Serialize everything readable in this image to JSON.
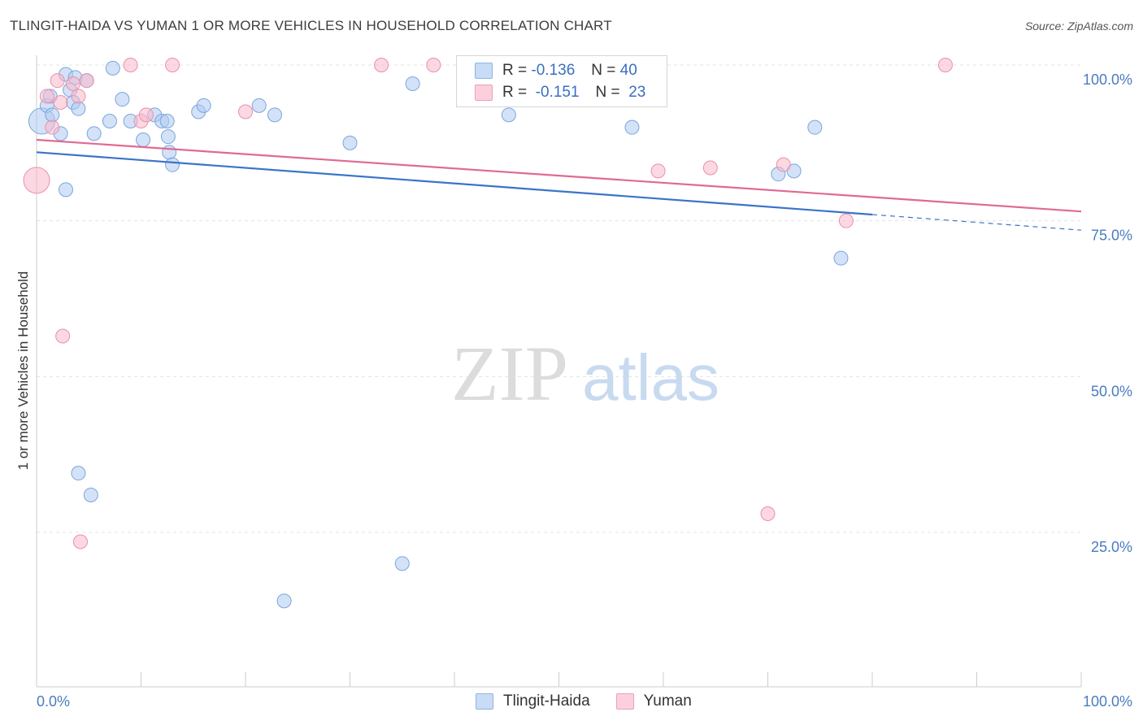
{
  "header": {
    "title": "TLINGIT-HAIDA VS YUMAN 1 OR MORE VEHICLES IN HOUSEHOLD CORRELATION CHART",
    "source": "Source: ZipAtlas.com"
  },
  "watermark": {
    "zip": "ZIP",
    "atlas": "atlas"
  },
  "legend": {
    "r_label": "R =",
    "n_label": "N =",
    "rows": [
      {
        "r": "-0.136",
        "n": "40",
        "color": "#aecbf0"
      },
      {
        "r": "-0.151",
        "n": "23",
        "color": "#f7b8ca"
      }
    ]
  },
  "chart_data": {
    "type": "scatter",
    "ylabel": "1 or more Vehicles in Household",
    "x_tick_labels": [
      "0.0%",
      "100.0%"
    ],
    "y_tick_labels": [
      "100.0%",
      "75.0%",
      "50.0%",
      "25.0%"
    ],
    "xlim": [
      0,
      100
    ],
    "ylim": [
      0,
      100
    ],
    "grid": "horizontal-dashed",
    "series": [
      {
        "name": "Tlingit-Haida",
        "color": "#aecbf0",
        "stroke": "#7aa6dc",
        "line_color": "#3a74c8",
        "trend": {
          "x0": 0,
          "y0": 86.0,
          "x1": 80,
          "y1": 76.0,
          "dash_to": 100,
          "dash_y": 73.5
        },
        "points": [
          [
            0.5,
            91
          ],
          [
            1.0,
            93.5
          ],
          [
            1.3,
            95
          ],
          [
            1.5,
            92
          ],
          [
            2.3,
            89
          ],
          [
            2.8,
            98.5
          ],
          [
            3.2,
            96
          ],
          [
            3.5,
            94
          ],
          [
            3.7,
            98
          ],
          [
            4.0,
            93
          ],
          [
            4.8,
            97.5
          ],
          [
            5.5,
            89
          ],
          [
            7.0,
            91
          ],
          [
            7.3,
            99.5
          ],
          [
            8.2,
            94.5
          ],
          [
            9.0,
            91
          ],
          [
            10.2,
            88
          ],
          [
            11.3,
            92
          ],
          [
            12.0,
            91
          ],
          [
            12.5,
            91
          ],
          [
            12.6,
            88.5
          ],
          [
            12.7,
            86
          ],
          [
            13.0,
            84
          ],
          [
            15.5,
            92.5
          ],
          [
            16.0,
            93.5
          ],
          [
            21.3,
            93.5
          ],
          [
            22.8,
            92
          ],
          [
            30.0,
            87.5
          ],
          [
            36.0,
            97
          ],
          [
            45.2,
            92
          ],
          [
            57.0,
            90
          ],
          [
            71.0,
            82.5
          ],
          [
            72.5,
            83
          ],
          [
            74.5,
            90
          ],
          [
            77.0,
            69
          ],
          [
            2.8,
            80
          ],
          [
            4.0,
            34.5
          ],
          [
            5.2,
            31
          ],
          [
            35.0,
            20
          ],
          [
            23.7,
            14
          ]
        ]
      },
      {
        "name": "Yuman",
        "color": "#f7b8ca",
        "stroke": "#ec8fab",
        "line_color": "#e06a92",
        "trend": {
          "x0": 0,
          "y0": 88.0,
          "x1": 100,
          "y1": 76.5
        },
        "points": [
          [
            0.0,
            81.5
          ],
          [
            1.0,
            95
          ],
          [
            1.5,
            90
          ],
          [
            2.0,
            97.5
          ],
          [
            2.3,
            94
          ],
          [
            3.5,
            97
          ],
          [
            4.0,
            95
          ],
          [
            4.8,
            97.5
          ],
          [
            9.0,
            100
          ],
          [
            10.0,
            91
          ],
          [
            10.5,
            92
          ],
          [
            13.0,
            100
          ],
          [
            20.0,
            92.5
          ],
          [
            33.0,
            100
          ],
          [
            38.0,
            100
          ],
          [
            59.5,
            83
          ],
          [
            64.5,
            83.5
          ],
          [
            71.5,
            84
          ],
          [
            77.5,
            75
          ],
          [
            87.0,
            100
          ],
          [
            70.0,
            28
          ],
          [
            2.5,
            56.5
          ],
          [
            4.2,
            23.5
          ]
        ]
      }
    ]
  }
}
